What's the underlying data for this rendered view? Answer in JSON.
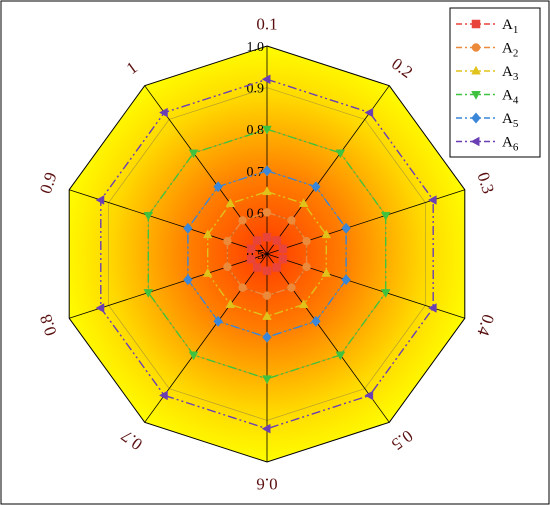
{
  "chart_data": {
    "type": "radar",
    "title": "",
    "categories": [
      "0.1",
      "0.2",
      "0.3",
      "0.4",
      "0.5",
      "0.6",
      "0.7",
      "0.8",
      "0.9",
      "1"
    ],
    "radial_range": [
      0.5,
      1.0
    ],
    "radial_ticks": [
      "0.5",
      "0.6",
      "0.7",
      "0.8",
      "0.9",
      "1.0"
    ],
    "legend_position": "top-right",
    "series": [
      {
        "name": "A",
        "sub": "1",
        "color": "#e8443a",
        "marker": "square",
        "values": [
          0.54,
          0.54,
          0.54,
          0.54,
          0.54,
          0.54,
          0.54,
          0.54,
          0.54,
          0.54
        ]
      },
      {
        "name": "A",
        "sub": "2",
        "color": "#ec8a3c",
        "marker": "circle",
        "values": [
          0.6,
          0.6,
          0.6,
          0.6,
          0.6,
          0.6,
          0.6,
          0.6,
          0.6,
          0.6
        ]
      },
      {
        "name": "A",
        "sub": "3",
        "color": "#e0c21a",
        "marker": "triangle-up",
        "values": [
          0.65,
          0.65,
          0.65,
          0.65,
          0.65,
          0.65,
          0.65,
          0.65,
          0.65,
          0.65
        ]
      },
      {
        "name": "A",
        "sub": "4",
        "color": "#3fc23f",
        "marker": "triangle-down",
        "values": [
          0.8,
          0.8,
          0.8,
          0.8,
          0.8,
          0.8,
          0.8,
          0.8,
          0.8,
          0.8
        ]
      },
      {
        "name": "A",
        "sub": "5",
        "color": "#3a86d8",
        "marker": "diamond",
        "values": [
          0.7,
          0.7,
          0.7,
          0.7,
          0.7,
          0.7,
          0.7,
          0.7,
          0.7,
          0.7
        ]
      },
      {
        "name": "A",
        "sub": "6",
        "color": "#6a3fb5",
        "marker": "triangle-left",
        "values": [
          0.92,
          0.92,
          0.92,
          0.92,
          0.92,
          0.92,
          0.92,
          0.92,
          0.92,
          0.92
        ]
      }
    ],
    "colors": {
      "outer_fill": "#ffff00",
      "inner_fill": "#ff3a00",
      "axis_line": "#000000",
      "category_label": "#5a0f0f"
    }
  }
}
